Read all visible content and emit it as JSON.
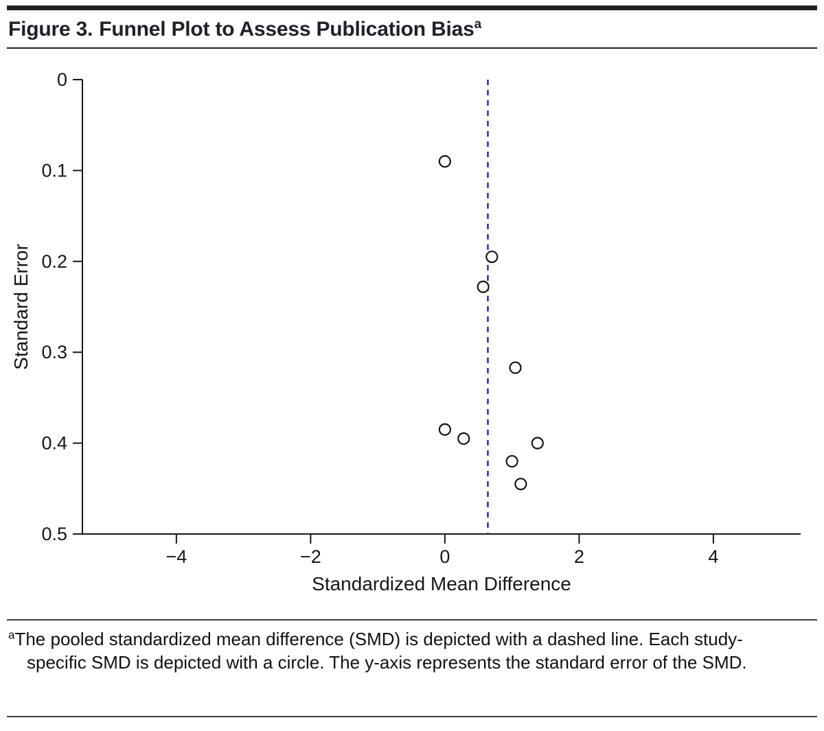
{
  "figure": {
    "label": "Figure 3.",
    "title": "Funnel Plot to Assess Publication Bias",
    "superscript": "a"
  },
  "footnote": {
    "marker": "a",
    "text": "The pooled standardized mean difference (SMD) is depicted with a dashed line. Each study-specific SMD is depicted with a circle. The y-axis represents the standard error of the SMD."
  },
  "chart_data": {
    "type": "scatter",
    "title": "",
    "xlabel": "Standardized Mean Difference",
    "ylabel": "Standard Error",
    "xlim": [
      -5.4,
      5.3
    ],
    "ylim": [
      0,
      0.5
    ],
    "y_axis_inverted": true,
    "x_ticks": [
      -4,
      -2,
      0,
      2,
      4
    ],
    "y_ticks": [
      0,
      0.1,
      0.2,
      0.3,
      0.4,
      0.5
    ],
    "grid": false,
    "legend": false,
    "pooled_smd_line": {
      "x": 0.64,
      "style": "dashed",
      "color": "#2626cc"
    },
    "points": [
      {
        "x": 0.0,
        "y": 0.09
      },
      {
        "x": 0.7,
        "y": 0.195
      },
      {
        "x": 0.57,
        "y": 0.228
      },
      {
        "x": 1.05,
        "y": 0.317
      },
      {
        "x": 0.0,
        "y": 0.385
      },
      {
        "x": 0.28,
        "y": 0.395
      },
      {
        "x": 1.38,
        "y": 0.4
      },
      {
        "x": 1.0,
        "y": 0.42
      },
      {
        "x": 1.13,
        "y": 0.445
      }
    ],
    "marker": {
      "shape": "circle",
      "radius": 8,
      "fill": "#ffffff",
      "stroke": "#151515"
    }
  },
  "colors": {
    "accent_dark": "#20202a",
    "rule_gray": "#3a3a3a",
    "axis": "#161616",
    "dashed_line": "#2626cc"
  }
}
